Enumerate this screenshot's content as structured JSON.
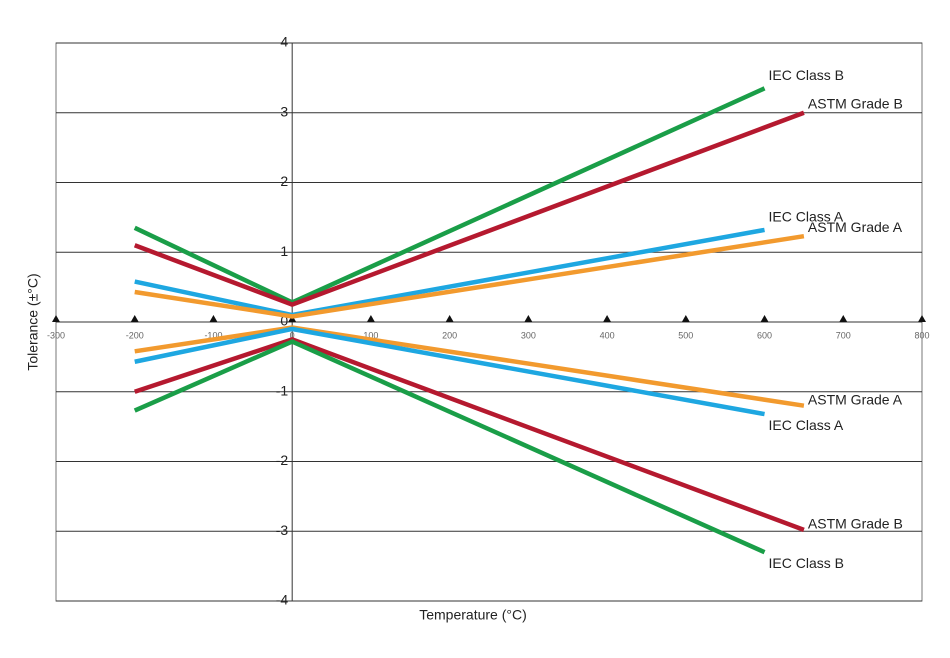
{
  "chart_data": {
    "type": "line",
    "x_label": "Temperature (°C)",
    "y_label": "Tolerance (±°C)",
    "xlim": [
      -300,
      800
    ],
    "xticks": [
      -300,
      -200,
      -100,
      0,
      100,
      200,
      300,
      400,
      500,
      600,
      700,
      800
    ],
    "ylim": [
      -4,
      4
    ],
    "yticks": [
      4,
      3,
      2,
      1,
      0,
      -1,
      -2,
      -3,
      -4
    ],
    "grid": true,
    "series": [
      {
        "name": "IEC Class B",
        "color": "#1a9e48",
        "x": [
          -200,
          0,
          600
        ],
        "values": [
          1.35,
          0.28,
          3.35
        ]
      },
      {
        "name": "ASTM Grade B",
        "color": "#b5192f",
        "x": [
          -200,
          0,
          650
        ],
        "values": [
          1.1,
          0.25,
          3.0
        ]
      },
      {
        "name": "IEC Class A",
        "color": "#1ea7e1",
        "x": [
          -200,
          0,
          600
        ],
        "values": [
          0.58,
          0.1,
          1.32
        ]
      },
      {
        "name": "ASTM Grade A",
        "color": "#f29a2e",
        "x": [
          -200,
          0,
          650
        ],
        "values": [
          0.43,
          0.08,
          1.23
        ]
      },
      {
        "name": "ASTM Grade A",
        "color": "#f29a2e",
        "x": [
          -200,
          0,
          650
        ],
        "values": [
          -0.42,
          -0.08,
          -1.2
        ]
      },
      {
        "name": "IEC Class A",
        "color": "#1ea7e1",
        "x": [
          -200,
          0,
          600
        ],
        "values": [
          -0.57,
          -0.1,
          -1.32
        ]
      },
      {
        "name": "ASTM Grade B",
        "color": "#b5192f",
        "x": [
          -200,
          0,
          650
        ],
        "values": [
          -1.0,
          -0.25,
          -2.98
        ]
      },
      {
        "name": "IEC Class B",
        "color": "#1a9e48",
        "x": [
          -200,
          0,
          600
        ],
        "values": [
          -1.27,
          -0.28,
          -3.3
        ]
      }
    ]
  }
}
